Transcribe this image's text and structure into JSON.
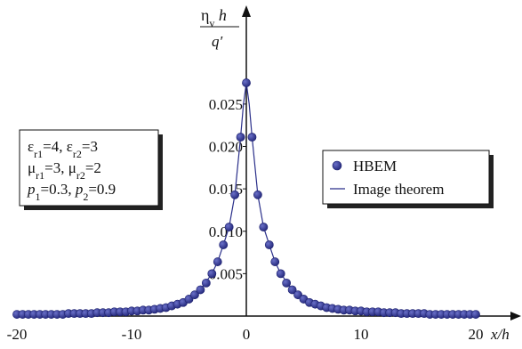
{
  "chart_data": {
    "type": "line",
    "xlabel": "x/h",
    "ylabel": {
      "numerator": "η",
      "numerator_sub": "v",
      "numerator_tail": " h",
      "denominator": "q′"
    },
    "xlim": [
      -20,
      20
    ],
    "ylim": [
      0,
      0.028
    ],
    "x_ticks": [
      -20,
      -10,
      0,
      10,
      20
    ],
    "x_tick_labels": [
      "-20",
      "-10",
      "0",
      "10",
      "20"
    ],
    "y_ticks": [
      0.005,
      0.01,
      0.015,
      0.02,
      0.025
    ],
    "y_tick_labels": [
      "0.005",
      "0.010",
      "0.015",
      "0.020",
      "0.025"
    ],
    "parameters_box": [
      [
        {
          "t": "ε"
        },
        {
          "t": "r1",
          "sub": true
        },
        {
          "t": "=4, ε"
        },
        {
          "t": "r2",
          "sub": true
        },
        {
          "t": "=3"
        }
      ],
      [
        {
          "t": "μ"
        },
        {
          "t": "r1",
          "sub": true
        },
        {
          "t": "=3, μ"
        },
        {
          "t": "r2",
          "sub": true
        },
        {
          "t": "=2"
        }
      ],
      [
        {
          "t": "p",
          "ital": true
        },
        {
          "t": "1",
          "sub": true
        },
        {
          "t": "=0.3, "
        },
        {
          "t": "p",
          "ital": true
        },
        {
          "t": "2",
          "sub": true
        },
        {
          "t": "=0.9"
        }
      ]
    ],
    "series": [
      {
        "name": "HBEM",
        "marker": "circle",
        "color": "#3a3f9a",
        "x": [
          -20,
          -19.5,
          -19,
          -18.5,
          -18,
          -17.5,
          -17,
          -16.5,
          -16,
          -15.5,
          -15,
          -14.5,
          -14,
          -13.5,
          -13,
          -12.5,
          -12,
          -11.5,
          -11,
          -10.5,
          -10,
          -9.5,
          -9,
          -8.5,
          -8,
          -7.5,
          -7,
          -6.5,
          -6,
          -5.5,
          -5,
          -4.5,
          -4,
          -3.5,
          -3,
          -2.5,
          -2,
          -1.5,
          -1,
          -0.5,
          0,
          0.5,
          1,
          1.5,
          2,
          2.5,
          3,
          3.5,
          4,
          4.5,
          5,
          5.5,
          6,
          6.5,
          7,
          7.5,
          8,
          8.5,
          9,
          9.5,
          10,
          10.5,
          11,
          11.5,
          12,
          12.5,
          13,
          13.5,
          14,
          14.5,
          15,
          15.5,
          16,
          16.5,
          17,
          17.5,
          18,
          18.5,
          19,
          19.5,
          20
        ],
        "y": [
          0.0002,
          0.0002,
          0.0002,
          0.0002,
          0.0002,
          0.0002,
          0.0002,
          0.0002,
          0.0002,
          0.0003,
          0.0003,
          0.0003,
          0.0003,
          0.0003,
          0.0004,
          0.0004,
          0.0004,
          0.0005,
          0.0005,
          0.0005,
          0.0006,
          0.0006,
          0.0007,
          0.0007,
          0.0008,
          0.0009,
          0.001,
          0.0012,
          0.0014,
          0.0016,
          0.002,
          0.0025,
          0.0031,
          0.0039,
          0.005,
          0.0064,
          0.0084,
          0.0105,
          0.0143,
          0.0211,
          0.0275,
          0.0211,
          0.0143,
          0.0105,
          0.0084,
          0.0064,
          0.005,
          0.0039,
          0.0031,
          0.0025,
          0.002,
          0.0016,
          0.0014,
          0.0012,
          0.001,
          0.0009,
          0.0008,
          0.0007,
          0.0007,
          0.0006,
          0.0006,
          0.0005,
          0.0005,
          0.0005,
          0.0004,
          0.0004,
          0.0004,
          0.0003,
          0.0003,
          0.0003,
          0.0003,
          0.0003,
          0.0002,
          0.0002,
          0.0002,
          0.0002,
          0.0002,
          0.0002,
          0.0002,
          0.0002,
          0.0002
        ]
      },
      {
        "name": "Image theorem",
        "marker": "line",
        "color": "#2a2f8a",
        "x": [
          -20,
          -19,
          -18,
          -17,
          -16,
          -15,
          -14,
          -13,
          -12,
          -11,
          -10,
          -9,
          -8,
          -7,
          -6,
          -5,
          -4,
          -3,
          -2.5,
          -2,
          -1.5,
          -1,
          -0.5,
          -0.25,
          0,
          0.25,
          0.5,
          1,
          1.5,
          2,
          2.5,
          3,
          4,
          5,
          6,
          7,
          8,
          9,
          10,
          11,
          12,
          13,
          14,
          15,
          16,
          17,
          18,
          19,
          20
        ],
        "y": [
          0.0002,
          0.0002,
          0.0002,
          0.0002,
          0.0002,
          0.0003,
          0.0003,
          0.0004,
          0.0004,
          0.0005,
          0.0006,
          0.0007,
          0.0008,
          0.001,
          0.0014,
          0.002,
          0.0031,
          0.005,
          0.0064,
          0.0084,
          0.0105,
          0.0143,
          0.0211,
          0.025,
          0.0275,
          0.025,
          0.0211,
          0.0143,
          0.0105,
          0.0084,
          0.0064,
          0.005,
          0.0031,
          0.002,
          0.0014,
          0.001,
          0.0008,
          0.0007,
          0.0006,
          0.0005,
          0.0004,
          0.0004,
          0.0003,
          0.0003,
          0.0002,
          0.0002,
          0.0002,
          0.0002,
          0.0002
        ]
      }
    ],
    "grid": false,
    "legend_position": "right"
  }
}
